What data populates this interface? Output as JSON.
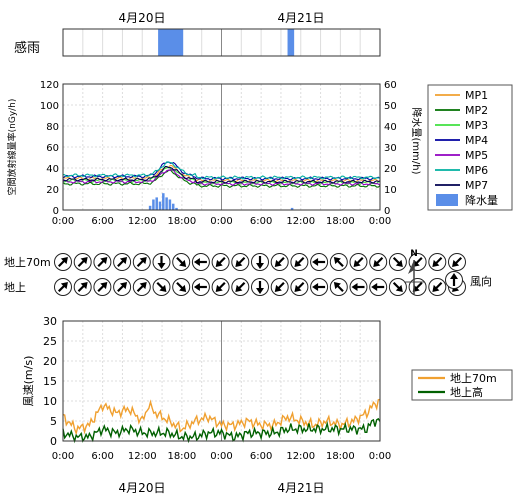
{
  "date_labels": [
    "4月20日",
    "4月21日"
  ],
  "rain_sensor_label": "感雨",
  "rain_sensor_intervals_hours": [
    [
      14.4,
      18.2
    ],
    [
      34.0,
      35.0
    ]
  ],
  "legend_dose": [
    "MP1",
    "MP2",
    "MP3",
    "MP4",
    "MP5",
    "MP6",
    "MP7",
    "降水量"
  ],
  "legend_wind": [
    "地上70m",
    "地上高"
  ],
  "wind_dir_rows": [
    "地上70m",
    "地上"
  ],
  "wind_dir_legend": "風向",
  "north_label": "N",
  "colors": {
    "MP1": "#f0a030",
    "MP2": "#007000",
    "MP3": "#40e040",
    "MP4": "#0000a0",
    "MP5": "#9000c0",
    "MP6": "#00b0a0",
    "MP7": "#000050",
    "rain": "#5a8ee8",
    "wind70": "#f0a030",
    "windGround": "#006000"
  },
  "chart_data": [
    {
      "type": "line",
      "ylabel": "空間放射線量率(nGy/h)",
      "y2label": "降水量(mm/h)",
      "ylim": [
        0,
        120
      ],
      "y2lim": [
        0,
        60
      ],
      "xlim_hours": [
        0,
        48
      ],
      "x_ticks": [
        "0:00",
        "6:00",
        "12:00",
        "18:00",
        "0:00",
        "6:00",
        "12:00",
        "18:00",
        "0:00"
      ],
      "y_ticks": [
        "0",
        "20",
        "40",
        "60",
        "80",
        "100",
        "120"
      ],
      "y2_ticks": [
        "0",
        "10",
        "20",
        "30",
        "40",
        "50",
        "60"
      ],
      "series": [
        {
          "name": "MP1",
          "baseline": 30,
          "peak": 42
        },
        {
          "name": "MP2",
          "baseline": 25,
          "peak": 37
        },
        {
          "name": "MP3",
          "baseline": 28,
          "peak": 40
        },
        {
          "name": "MP4",
          "baseline": 32,
          "peak": 46
        },
        {
          "name": "MP5",
          "baseline": 27,
          "peak": 38
        },
        {
          "name": "MP6",
          "baseline": 33,
          "peak": 45
        },
        {
          "name": "MP7",
          "baseline": 29,
          "peak": 41
        }
      ],
      "peak_hour": 16,
      "rain": {
        "name": "降水量",
        "hours": [
          13,
          13.5,
          14,
          14.5,
          15,
          15.5,
          16,
          16.5,
          17,
          34.5
        ],
        "values": [
          2,
          5,
          6,
          4,
          8,
          6,
          5,
          3,
          1,
          1
        ]
      },
      "grid": true,
      "legend": "right"
    },
    {
      "type": "table",
      "rows": [
        {
          "name": "地上70m",
          "directions": [
            "NE",
            "NE",
            "NE",
            "NE",
            "NE",
            "S",
            "SE",
            "W",
            "SW",
            "SW",
            "S",
            "SW",
            "SW",
            "W",
            "NW",
            "SW",
            "SW",
            "SE",
            "SW",
            "SW",
            "SW"
          ]
        },
        {
          "name": "地上",
          "directions": [
            "NE",
            "NE",
            "NE",
            "NE",
            "NE",
            "SE",
            "SE",
            "W",
            "SW",
            "SW",
            "S",
            "SW",
            "SW",
            "W",
            "NW",
            "W",
            "W",
            "SE",
            "SW",
            "SW",
            "SW"
          ]
        }
      ]
    },
    {
      "type": "line",
      "ylabel": "風速(m/s)",
      "ylim": [
        0,
        30
      ],
      "xlim_hours": [
        0,
        48
      ],
      "x_ticks": [
        "0:00",
        "6:00",
        "12:00",
        "18:00",
        "0:00",
        "6:00",
        "12:00",
        "18:00",
        "0:00"
      ],
      "y_ticks": [
        "0",
        "5",
        "10",
        "15",
        "20",
        "25",
        "30"
      ],
      "series": [
        {
          "name": "地上70m",
          "x": [
            0,
            2,
            4,
            6,
            8,
            10,
            12,
            13,
            14,
            16,
            18,
            20,
            22,
            24,
            26,
            28,
            30,
            32,
            34,
            36,
            38,
            40,
            42,
            44,
            46,
            47,
            48
          ],
          "y": [
            6,
            3,
            4,
            9,
            7,
            8,
            5,
            9,
            7,
            5,
            3,
            5,
            6,
            4,
            4,
            5,
            4,
            4,
            6,
            5,
            4,
            5,
            4,
            5,
            7,
            9,
            10
          ]
        },
        {
          "name": "地上高",
          "x": [
            0,
            2,
            4,
            6,
            8,
            10,
            12,
            14,
            16,
            18,
            20,
            22,
            24,
            26,
            28,
            30,
            32,
            34,
            36,
            38,
            40,
            42,
            44,
            46,
            47,
            48
          ],
          "y": [
            2,
            1,
            1,
            3,
            2,
            3,
            2,
            2,
            2,
            1,
            1,
            2,
            2,
            1,
            2,
            2,
            2,
            3,
            3,
            3,
            3,
            3,
            3,
            3,
            5,
            5
          ]
        }
      ],
      "grid": true,
      "legend": "right"
    }
  ]
}
